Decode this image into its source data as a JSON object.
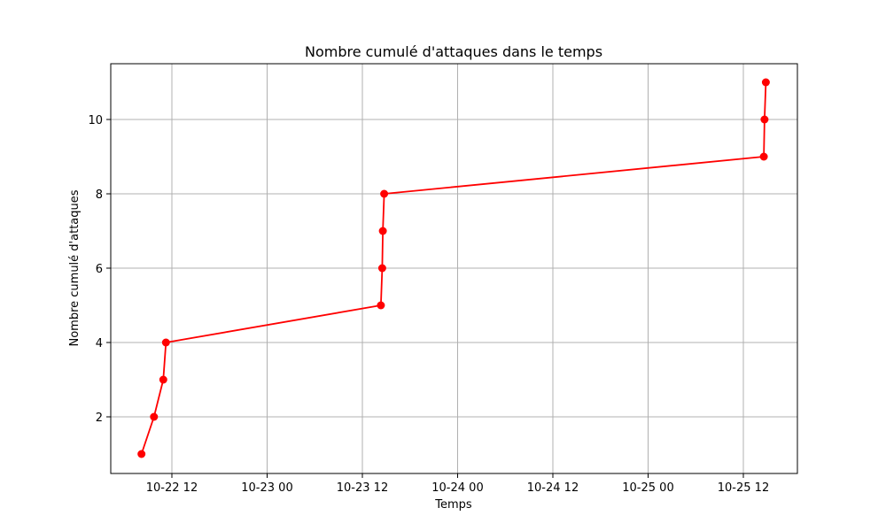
{
  "chart_data": {
    "type": "line",
    "title": "Nombre cumulé d'attaques dans le temps",
    "xlabel": "Temps",
    "ylabel": "Nombre cumulé d'attaques",
    "x_ticks": [
      "10-22 12",
      "10-23 00",
      "10-23 12",
      "10-24 00",
      "10-24 12",
      "10-25 00",
      "10-25 12"
    ],
    "y_ticks": [
      2,
      4,
      6,
      8,
      10
    ],
    "grid": true,
    "series": [
      {
        "color": "#ff0000",
        "marker": "circle",
        "x": [
          "2023-10-22 08:10",
          "2023-10-22 09:45",
          "2023-10-22 10:55",
          "2023-10-22 11:15",
          "2023-10-23 14:20",
          "2023-10-23 14:30",
          "2023-10-23 14:35",
          "2023-10-23 14:45",
          "2023-10-25 14:35",
          "2023-10-25 14:40",
          "2023-10-25 14:50"
        ],
        "y": [
          1,
          2,
          3,
          4,
          5,
          6,
          7,
          8,
          9,
          10,
          11
        ]
      }
    ]
  }
}
